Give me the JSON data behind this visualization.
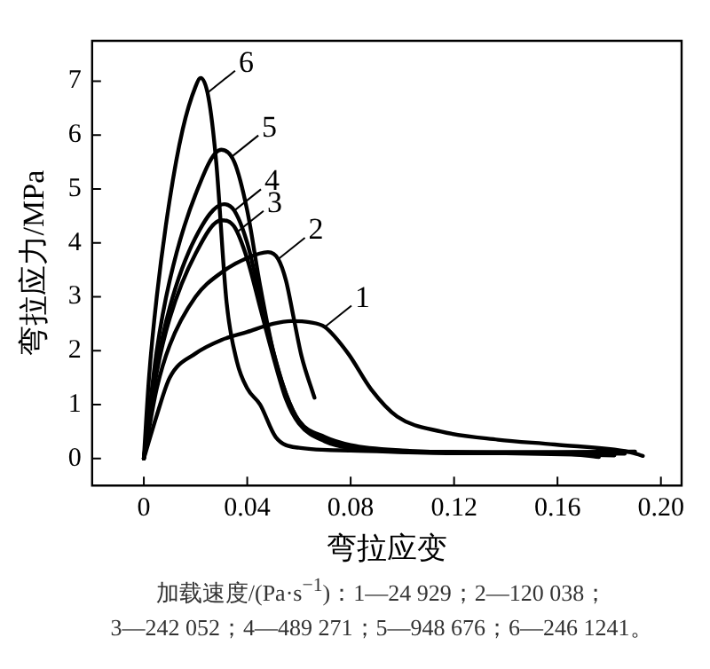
{
  "chart_data": {
    "type": "line",
    "xlabel": "弯拉应变",
    "ylabel": "弯拉应力/MPa",
    "xlim": [
      -0.02,
      0.208
    ],
    "ylim": [
      -0.5,
      7.75
    ],
    "xticks": [
      0,
      0.04,
      0.08,
      0.12,
      0.16,
      {
        "value": 0.2,
        "label": "0.20"
      }
    ],
    "yticks": [
      0,
      1,
      2,
      3,
      4,
      5,
      6,
      7
    ],
    "grid": false,
    "legend": false,
    "marker": "none",
    "line_style": "solid",
    "series": [
      {
        "color": "#000000",
        "x": [
          0,
          0.005,
          0.01,
          0.02,
          0.03,
          0.04,
          0.05,
          0.057,
          0.064,
          0.07,
          0.079,
          0.088,
          0.098,
          0.115,
          0.137,
          0.159,
          0.188,
          0.193
        ],
        "values": [
          0,
          0.8,
          1.5,
          1.95,
          2.2,
          2.35,
          2.5,
          2.55,
          2.53,
          2.44,
          1.95,
          1.28,
          0.78,
          0.5,
          0.35,
          0.26,
          0.12,
          0.05
        ]
      },
      {
        "color": "#000000",
        "x": [
          0,
          0.005,
          0.01,
          0.02,
          0.03,
          0.04,
          0.048,
          0.052,
          0.055,
          0.058,
          0.061,
          0.066
        ],
        "values": [
          0,
          1.3,
          2.1,
          3.0,
          3.45,
          3.72,
          3.83,
          3.7,
          3.3,
          2.6,
          1.9,
          1.13
        ]
      },
      {
        "color": "#000000",
        "x": [
          0,
          0.005,
          0.01,
          0.02,
          0.03,
          0.035,
          0.04,
          0.045,
          0.05,
          0.055,
          0.06,
          0.07,
          0.08,
          0.12,
          0.16,
          0.186
        ],
        "values": [
          0,
          1.6,
          2.6,
          3.8,
          4.42,
          4.3,
          3.7,
          2.8,
          1.9,
          1.1,
          0.65,
          0.32,
          0.2,
          0.12,
          0.1,
          0.09
        ]
      },
      {
        "color": "#000000",
        "x": [
          0,
          0.005,
          0.01,
          0.02,
          0.031,
          0.035,
          0.04,
          0.045,
          0.05,
          0.055,
          0.06,
          0.07,
          0.08,
          0.12,
          0.16,
          0.19
        ],
        "values": [
          0,
          1.7,
          2.8,
          4.1,
          4.72,
          4.6,
          4.0,
          3.0,
          2.0,
          1.2,
          0.7,
          0.35,
          0.2,
          0.12,
          0.12,
          0.13
        ]
      },
      {
        "color": "#000000",
        "x": [
          0,
          0.005,
          0.01,
          0.02,
          0.03,
          0.035,
          0.04,
          0.045,
          0.05,
          0.055,
          0.06,
          0.07,
          0.08,
          0.1,
          0.14,
          0.182
        ],
        "values": [
          0,
          2.0,
          3.3,
          4.9,
          5.73,
          5.5,
          4.6,
          3.2,
          2.0,
          1.2,
          0.7,
          0.4,
          0.25,
          0.15,
          0.1,
          0.06
        ]
      },
      {
        "color": "#000000",
        "x": [
          0,
          0.002,
          0.005,
          0.01,
          0.015,
          0.02,
          0.022,
          0.025,
          0.028,
          0.032,
          0.036,
          0.04,
          0.045,
          0.051,
          0.06,
          0.08,
          0.12,
          0.16,
          0.176
        ],
        "values": [
          0,
          1.5,
          3.0,
          4.8,
          6.1,
          6.9,
          7.06,
          6.7,
          5.5,
          2.9,
          1.8,
          1.3,
          1.0,
          0.4,
          0.2,
          0.15,
          0.1,
          0.1,
          0.03
        ]
      }
    ],
    "annotations": [
      {
        "text": "1",
        "x": 0.07,
        "y": 2.44
      },
      {
        "text": "2",
        "x": 0.052,
        "y": 3.7
      },
      {
        "text": "3",
        "x": 0.036,
        "y": 4.2
      },
      {
        "text": "4",
        "x": 0.035,
        "y": 4.6
      },
      {
        "text": "5",
        "x": 0.034,
        "y": 5.6
      },
      {
        "text": "6",
        "x": 0.025,
        "y": 6.8
      },
      "加载速度/(Pa·s$^{−1}$)：1—24 929；2—120 038；",
      "3—242 052；4—489 271；5—948 676；6—246 1241。"
    ]
  }
}
